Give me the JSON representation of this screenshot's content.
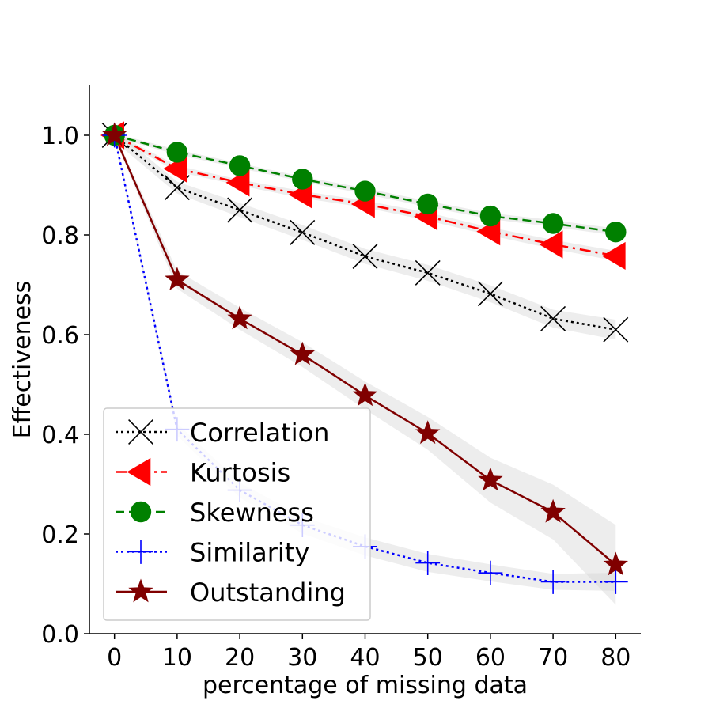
{
  "chart_data": {
    "type": "line",
    "title": "",
    "xlabel": "percentage of missing data",
    "ylabel": "Effectiveness",
    "x": [
      0,
      10,
      20,
      30,
      40,
      50,
      60,
      70,
      80
    ],
    "xticks": [
      "0",
      "10",
      "20",
      "30",
      "40",
      "50",
      "60",
      "70",
      "80"
    ],
    "yticks": [
      "0.0",
      "0.2",
      "0.4",
      "0.6",
      "0.8",
      "1.0"
    ],
    "xlim": [
      -4,
      84
    ],
    "ylim": [
      0,
      1.1
    ],
    "grid": false,
    "legend_position": "lower-left",
    "series": [
      {
        "name": "Correlation",
        "color": "#000000",
        "line_style": "dotted",
        "marker": "x",
        "values": [
          1.0,
          0.895,
          0.85,
          0.805,
          0.757,
          0.724,
          0.682,
          0.632,
          0.61
        ],
        "band": [
          0.012,
          0.012,
          0.014,
          0.015,
          0.015,
          0.016,
          0.017,
          0.018,
          0.02
        ]
      },
      {
        "name": "Kurtosis",
        "color": "#ff0000",
        "line_style": "dashdot",
        "marker": "triangle-left",
        "values": [
          1.0,
          0.933,
          0.905,
          0.881,
          0.862,
          0.837,
          0.807,
          0.781,
          0.758
        ],
        "band": [
          0.005,
          0.006,
          0.006,
          0.007,
          0.007,
          0.008,
          0.008,
          0.009,
          0.01
        ]
      },
      {
        "name": "Skewness",
        "color": "#008000",
        "line_style": "dashed",
        "marker": "circle",
        "values": [
          1.0,
          0.966,
          0.939,
          0.912,
          0.888,
          0.862,
          0.838,
          0.823,
          0.806
        ],
        "band": [
          0.004,
          0.005,
          0.005,
          0.005,
          0.006,
          0.006,
          0.006,
          0.007,
          0.007
        ]
      },
      {
        "name": "Similarity",
        "color": "#0000ff",
        "line_style": "dotted",
        "marker": "plus",
        "values": [
          1.0,
          0.41,
          0.288,
          0.218,
          0.175,
          0.142,
          0.122,
          0.104,
          0.104
        ],
        "band": [
          0.005,
          0.012,
          0.015,
          0.017,
          0.018,
          0.018,
          0.017,
          0.016,
          0.018
        ]
      },
      {
        "name": "Outstanding",
        "color": "#800000",
        "line_style": "solid",
        "marker": "star",
        "values": [
          1.0,
          0.71,
          0.632,
          0.56,
          0.478,
          0.402,
          0.308,
          0.244,
          0.138
        ],
        "band": [
          0.005,
          0.018,
          0.022,
          0.025,
          0.028,
          0.033,
          0.045,
          0.055,
          0.08
        ]
      }
    ]
  }
}
